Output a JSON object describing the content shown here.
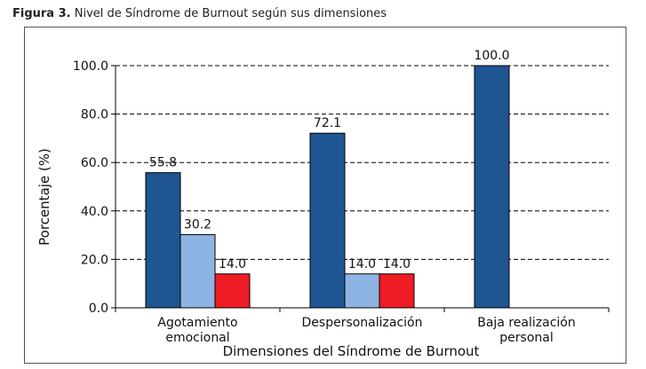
{
  "figure": {
    "label": "Figura 3.",
    "title": "Nivel de Síndrome de Burnout según sus dimensiones"
  },
  "chart_data": {
    "type": "bar",
    "categories": [
      [
        "Agotamiento",
        "emocional"
      ],
      [
        "Despersonalización"
      ],
      [
        "Baja realización",
        "personal"
      ]
    ],
    "series": [
      {
        "color": "#1f5592",
        "values": [
          55.8,
          72.1,
          100.0
        ]
      },
      {
        "color": "#8eb4e3",
        "values": [
          30.2,
          14.0,
          null
        ]
      },
      {
        "color": "#ee1c25",
        "values": [
          14.0,
          14.0,
          null
        ]
      }
    ],
    "value_labels": [
      [
        "55.8",
        "72.1",
        "100.0"
      ],
      [
        "30.2",
        "14.0",
        ""
      ],
      [
        "14.0",
        "14.0",
        ""
      ]
    ],
    "xlabel": "Dimensiones del Síndrome de Burnout",
    "ylabel": "Porcentaje (%)",
    "ylim": [
      0,
      100
    ],
    "yticks": [
      "0.0",
      "20.0",
      "40.0",
      "60.0",
      "80.0",
      "100.0"
    ],
    "grid": "dashed horizontal",
    "legend": "none"
  }
}
